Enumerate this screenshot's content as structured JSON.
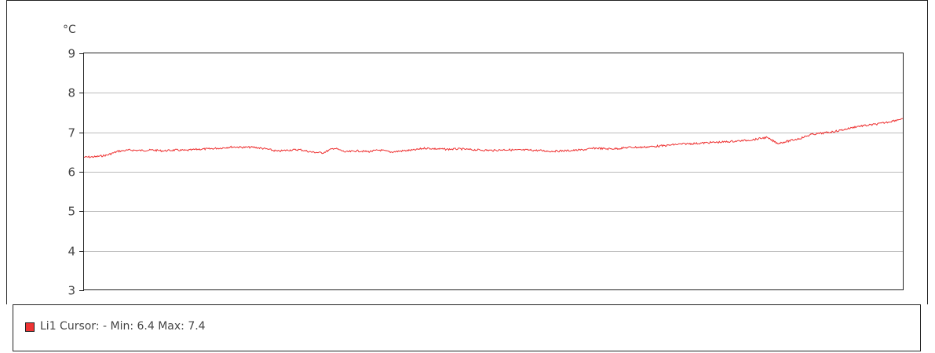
{
  "chart_data": {
    "type": "line",
    "unit": "°C",
    "ylim": [
      3,
      9
    ],
    "yticks": [
      3,
      4,
      5,
      6,
      7,
      8,
      9
    ],
    "grid": true,
    "series": [
      {
        "name": "Li1",
        "color": "#ee3333",
        "values": [
          6.37,
          6.38,
          6.42,
          6.52,
          6.55,
          6.54,
          6.55,
          6.53,
          6.55,
          6.54,
          6.57,
          6.58,
          6.6,
          6.63,
          6.62,
          6.62,
          6.58,
          6.52,
          6.55,
          6.56,
          6.5,
          6.48,
          6.6,
          6.5,
          6.53,
          6.51,
          6.55,
          6.5,
          6.53,
          6.55,
          6.6,
          6.58,
          6.57,
          6.58,
          6.56,
          6.55,
          6.54,
          6.56,
          6.55,
          6.55,
          6.54,
          6.52,
          6.53,
          6.54,
          6.56,
          6.6,
          6.58,
          6.59,
          6.62,
          6.62,
          6.64,
          6.66,
          6.69,
          6.71,
          6.72,
          6.74,
          6.75,
          6.77,
          6.79,
          6.82,
          6.87,
          6.72,
          6.78,
          6.85,
          6.95,
          6.98,
          7.02,
          7.08,
          7.15,
          7.18,
          7.22,
          7.28,
          7.35
        ]
      }
    ]
  },
  "legend": {
    "text": "Li1 Cursor: - Min: 6.4 Max: 7.4"
  },
  "colors": {
    "line": "#ee3333",
    "grid": "#bbbbbb",
    "axis": "#222222"
  }
}
